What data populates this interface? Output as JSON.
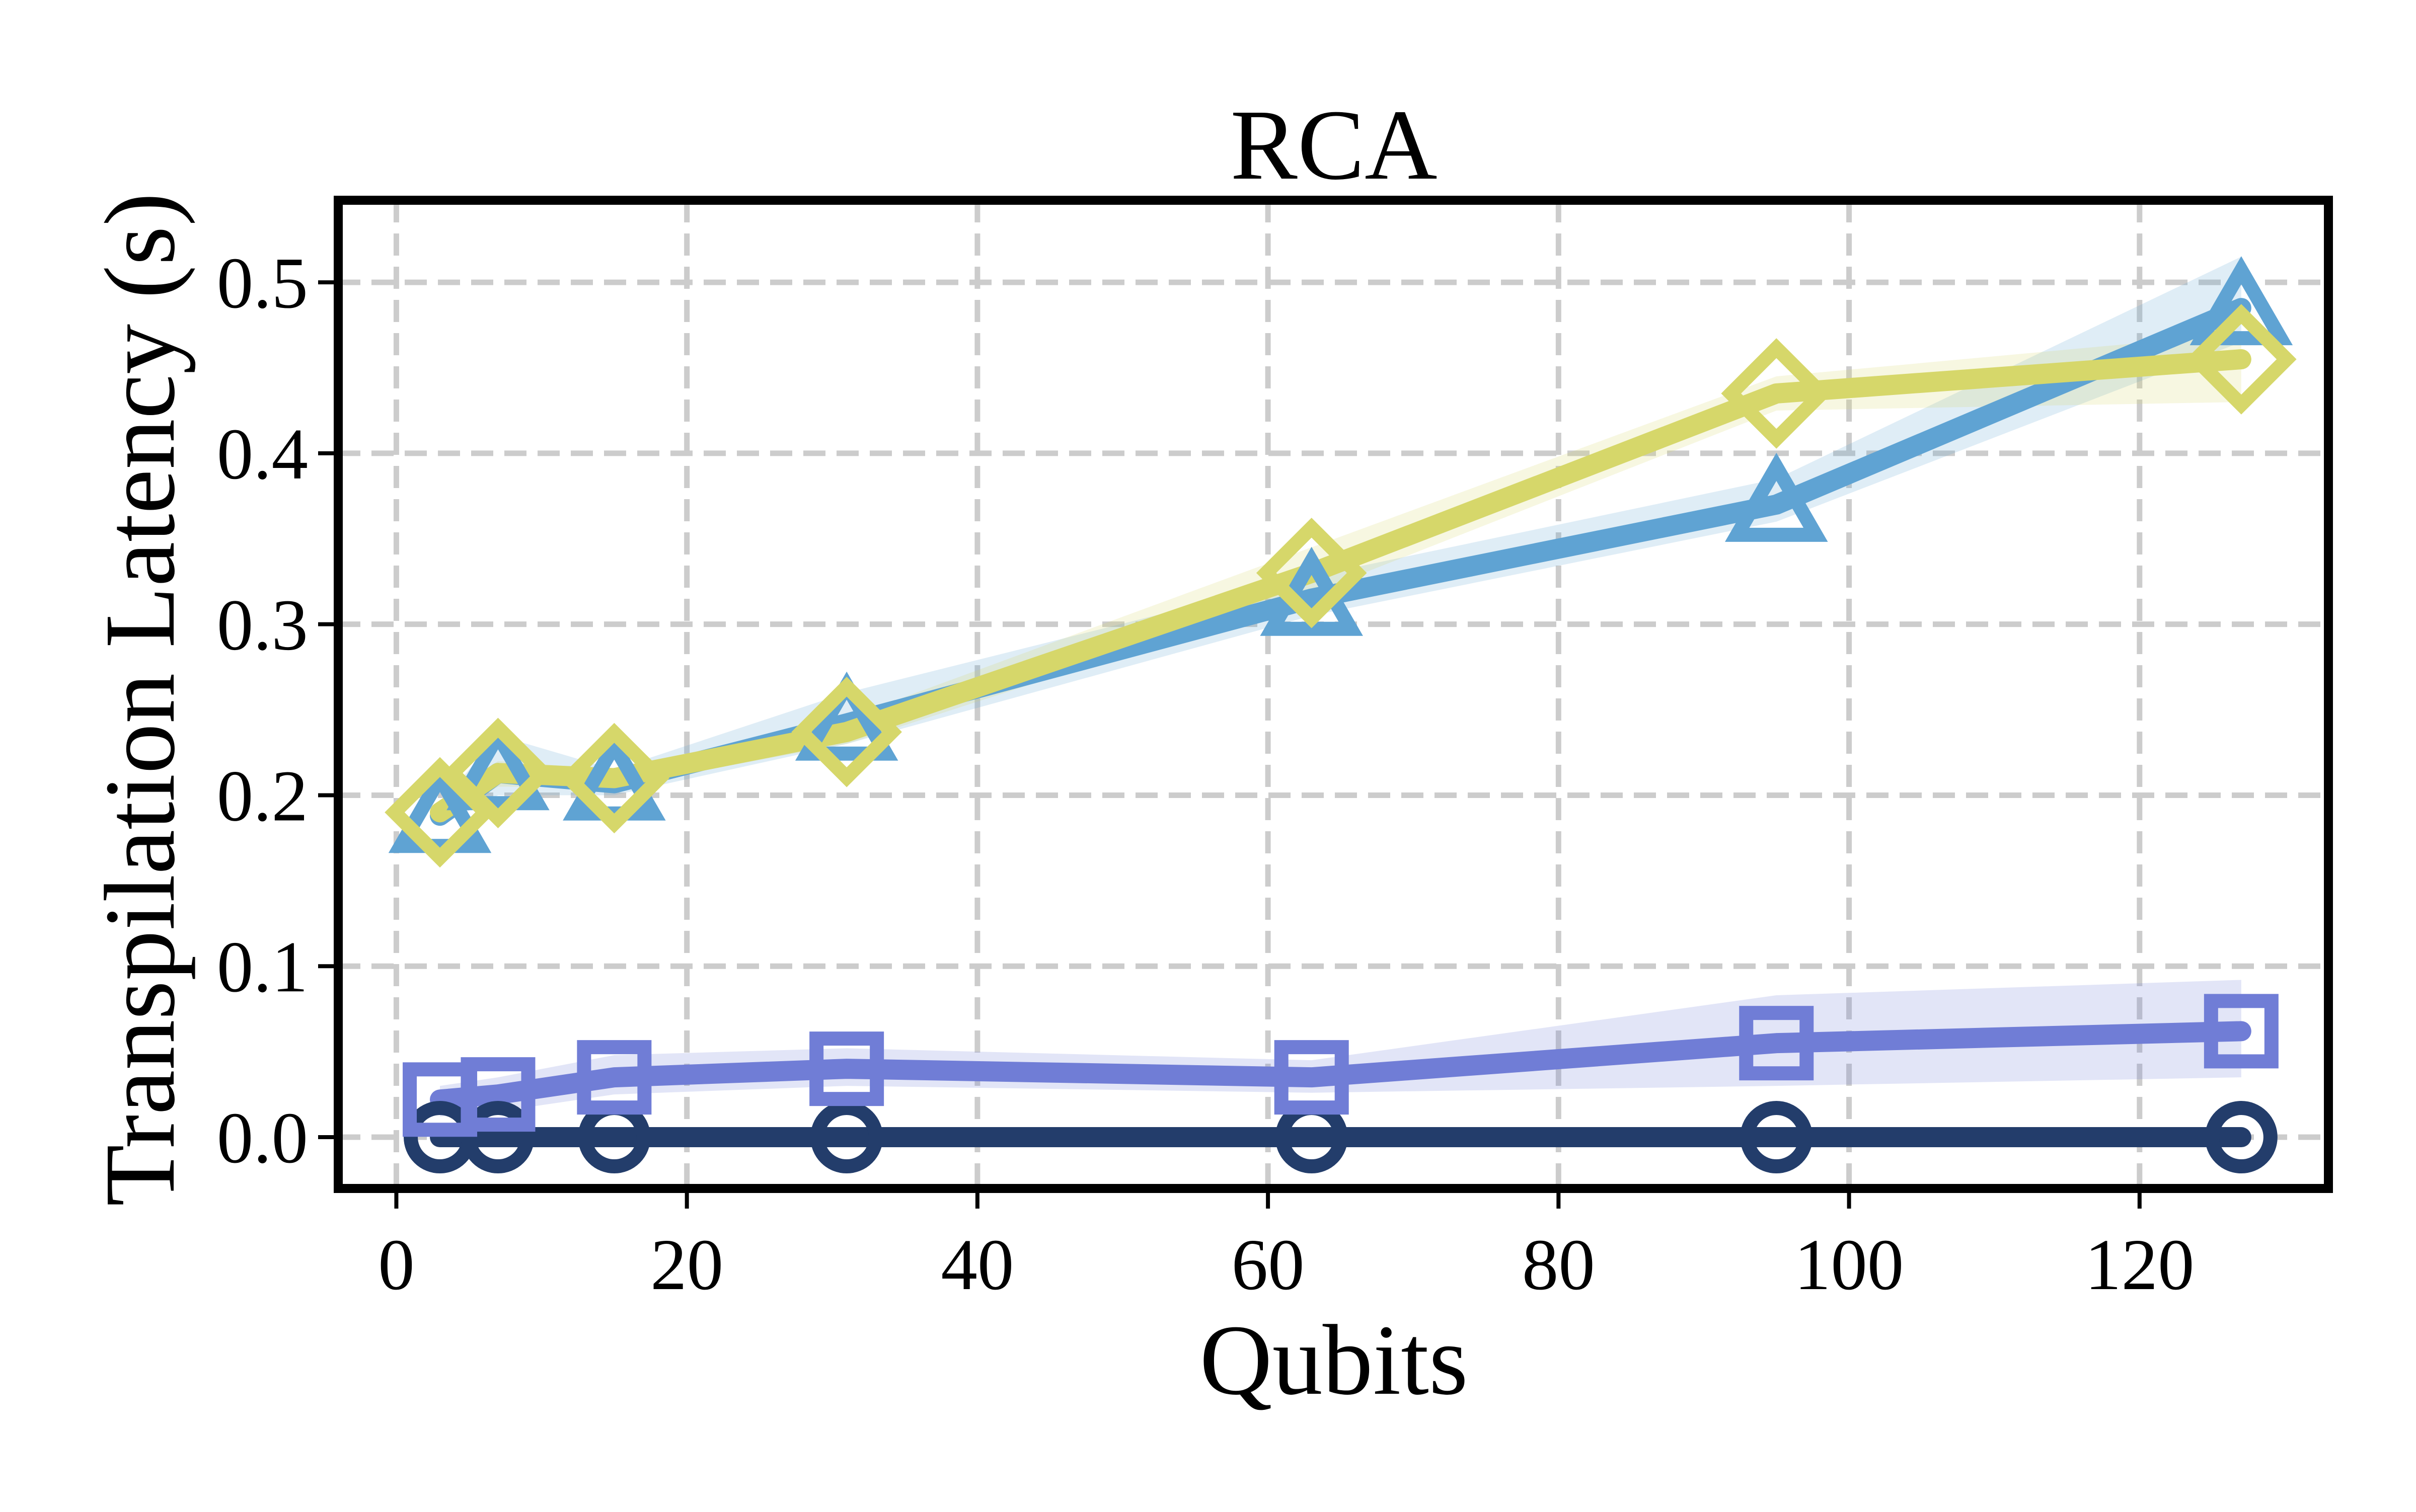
{
  "chart_data": {
    "type": "line",
    "title": "RCA",
    "xlabel": "Qubits",
    "ylabel": "Transpilation Latency (s)",
    "xlim": [
      -4,
      133
    ],
    "ylim": [
      -0.03,
      0.548
    ],
    "x_ticks": [
      "0",
      "20",
      "40",
      "60",
      "80",
      "100",
      "120"
    ],
    "y_ticks": [
      "0.0",
      "0.1",
      "0.2",
      "0.3",
      "0.4",
      "0.5"
    ],
    "x_tick_values": [
      0,
      20,
      40,
      60,
      80,
      100,
      120
    ],
    "y_tick_values": [
      0.0,
      0.1,
      0.2,
      0.3,
      0.4,
      0.5
    ],
    "grid": true,
    "legend": null,
    "series": [
      {
        "marker": "circle",
        "color": "#233d6b",
        "x": [
          3,
          7,
          15,
          31,
          63,
          95,
          127
        ],
        "y": [
          0.0,
          0.0,
          0.0,
          0.0,
          0.0,
          0.0,
          0.0
        ],
        "band": [
          [
            0.0,
            0.0
          ],
          [
            0.0,
            0.0
          ],
          [
            0.0,
            0.0
          ],
          [
            0.0,
            0.0
          ],
          [
            0.0,
            0.0
          ],
          [
            0.0,
            0.0
          ],
          [
            0.0,
            0.0
          ]
        ]
      },
      {
        "marker": "square",
        "color": "#707dd6",
        "x": [
          3,
          7,
          15,
          31,
          63,
          95,
          127
        ],
        "y": [
          0.022,
          0.025,
          0.035,
          0.04,
          0.035,
          0.055,
          0.062
        ],
        "band": [
          [
            0.012,
            0.03
          ],
          [
            0.015,
            0.035
          ],
          [
            0.025,
            0.048
          ],
          [
            0.03,
            0.052
          ],
          [
            0.026,
            0.045
          ],
          [
            0.03,
            0.083
          ],
          [
            0.035,
            0.092
          ]
        ]
      },
      {
        "marker": "triangle",
        "color": "#5fa3d3",
        "x": [
          3,
          7,
          15,
          31,
          63,
          95,
          127
        ],
        "y": [
          0.188,
          0.213,
          0.207,
          0.242,
          0.315,
          0.37,
          0.485
        ],
        "band": [
          [
            0.182,
            0.195
          ],
          [
            0.2,
            0.235
          ],
          [
            0.2,
            0.215
          ],
          [
            0.23,
            0.26
          ],
          [
            0.305,
            0.328
          ],
          [
            0.36,
            0.385
          ],
          [
            0.465,
            0.515
          ]
        ]
      },
      {
        "marker": "diamond",
        "color": "#d6d76a",
        "x": [
          3,
          7,
          15,
          31,
          63,
          95,
          127
        ],
        "y": [
          0.19,
          0.213,
          0.21,
          0.237,
          0.33,
          0.435,
          0.455
        ],
        "band": [
          [
            0.185,
            0.197
          ],
          [
            0.205,
            0.22
          ],
          [
            0.205,
            0.215
          ],
          [
            0.23,
            0.245
          ],
          [
            0.318,
            0.345
          ],
          [
            0.425,
            0.445
          ],
          [
            0.43,
            0.47
          ]
        ]
      }
    ]
  }
}
